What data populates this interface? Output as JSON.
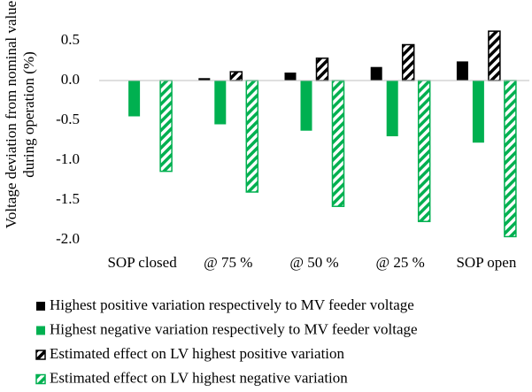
{
  "chart_data": {
    "type": "bar",
    "ylabel": [
      "Voltage deviation from nominal value",
      "during operation (%)"
    ],
    "categories": [
      "SOP closed",
      "@ 75 %",
      "@ 50 %",
      "@ 25 %",
      "SOP open"
    ],
    "series": [
      {
        "name": "Highest positive variation respectively to MV feeder voltage",
        "color": "#000000",
        "hatch": false,
        "values": [
          0,
          0.03,
          0.1,
          0.17,
          0.24
        ]
      },
      {
        "name": "Highest negative variation respectively to MV feeder voltage",
        "color": "#00b050",
        "hatch": false,
        "values": [
          -0.45,
          -0.55,
          -0.63,
          -0.7,
          -0.78
        ]
      },
      {
        "name": "Estimated effect on LV highest positive variation",
        "color": "#000000",
        "hatch": true,
        "values": [
          0,
          0.11,
          0.28,
          0.45,
          0.62
        ]
      },
      {
        "name": "Estimated effect on LV highest negative variation",
        "color": "#00b050",
        "hatch": true,
        "values": [
          -1.14,
          -1.4,
          -1.58,
          -1.77,
          -1.96
        ]
      }
    ],
    "ylim": [
      -2,
      0.7
    ],
    "yticks": [
      0.5,
      {
        "value": 0,
        "label": "0.0"
      },
      -0.5,
      {
        "value": -1,
        "label": "-1.0"
      },
      -1.5,
      {
        "value": -2,
        "label": "-2.0"
      }
    ],
    "grid": false
  }
}
